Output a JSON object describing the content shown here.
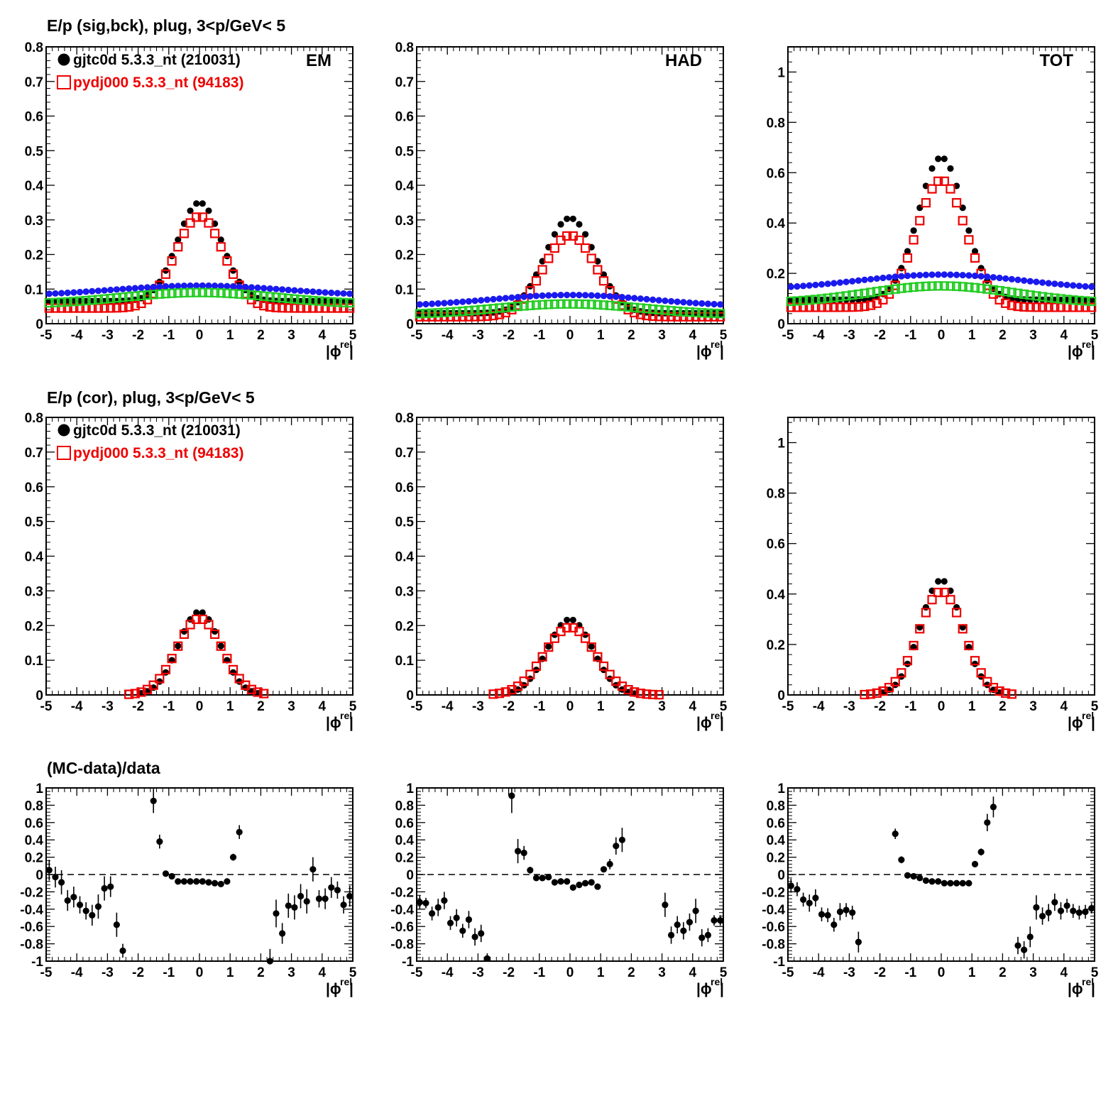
{
  "figure": {
    "row_titles": [
      "E/p (sig,bck), plug,  3<p/GeV< 5",
      "E/p (cor), plug,  3<p/GeV< 5",
      "(MC-data)/data"
    ],
    "column_labels": [
      "EM",
      "HAD",
      "TOT"
    ],
    "x_axis_label": "|ϕ",
    "x_axis_label_sup": "rel",
    "x_axis_label_end": "|",
    "legend": [
      {
        "label": "gjtc0d 5.3.3_nt (210031)",
        "color": "#000000",
        "marker": "filled-circle"
      },
      {
        "label": "pydj000 5.3.3_nt (94183)",
        "color": "#ee0000",
        "marker": "open-square"
      }
    ]
  },
  "chart_data": [
    {
      "id": "em-sig-bck",
      "type": "scatter",
      "row": 0,
      "col": 0,
      "xlim": [
        -5,
        5
      ],
      "ylim": [
        0,
        0.8
      ],
      "yticks": [
        0,
        0.1,
        0.2,
        0.3,
        0.4,
        0.5,
        0.6,
        0.7,
        0.8
      ],
      "corner_label": "EM",
      "legend": true,
      "curves": [
        {
          "kind": "peak",
          "color": "#000000",
          "marker": "circle",
          "base": 0.065,
          "amp": 0.285,
          "sigma": 0.72
        },
        {
          "kind": "peak",
          "color": "#ee0000",
          "marker": "square",
          "base": 0.045,
          "amp": 0.265,
          "sigma": 0.78
        },
        {
          "kind": "flat",
          "color": "#1a1aee",
          "marker": "circle",
          "base": 0.08,
          "amp": 0.03,
          "sigma": 2.8
        },
        {
          "kind": "flat",
          "color": "#22cc22",
          "marker": "square",
          "base": 0.055,
          "amp": 0.035,
          "sigma": 2.5
        }
      ]
    },
    {
      "id": "had-sig-bck",
      "type": "scatter",
      "row": 0,
      "col": 1,
      "xlim": [
        -5,
        5
      ],
      "ylim": [
        0,
        0.8
      ],
      "yticks": [
        0,
        0.1,
        0.2,
        0.3,
        0.4,
        0.5,
        0.6,
        0.7,
        0.8
      ],
      "corner_label": "HAD",
      "legend": false,
      "curves": [
        {
          "kind": "peak",
          "color": "#000000",
          "marker": "circle",
          "base": 0.03,
          "amp": 0.275,
          "sigma": 0.82
        },
        {
          "kind": "peak",
          "color": "#ee0000",
          "marker": "square",
          "base": 0.02,
          "amp": 0.235,
          "sigma": 0.86
        },
        {
          "kind": "flat",
          "color": "#1a1aee",
          "marker": "circle",
          "base": 0.05,
          "amp": 0.033,
          "sigma": 2.6
        },
        {
          "kind": "flat",
          "color": "#22cc22",
          "marker": "square",
          "base": 0.025,
          "amp": 0.032,
          "sigma": 2.4
        }
      ]
    },
    {
      "id": "tot-sig-bck",
      "type": "scatter",
      "row": 0,
      "col": 2,
      "xlim": [
        -5,
        5
      ],
      "ylim": [
        0,
        1.1
      ],
      "yticks": [
        0,
        0.2,
        0.4,
        0.6,
        0.8,
        1
      ],
      "corner_label": "TOT",
      "legend": false,
      "curves": [
        {
          "kind": "peak",
          "color": "#000000",
          "marker": "circle",
          "base": 0.095,
          "amp": 0.565,
          "sigma": 0.75
        },
        {
          "kind": "peak",
          "color": "#ee0000",
          "marker": "square",
          "base": 0.065,
          "amp": 0.505,
          "sigma": 0.8
        },
        {
          "kind": "flat",
          "color": "#1a1aee",
          "marker": "circle",
          "base": 0.135,
          "amp": 0.06,
          "sigma": 2.7
        },
        {
          "kind": "flat",
          "color": "#22cc22",
          "marker": "square",
          "base": 0.08,
          "amp": 0.07,
          "sigma": 2.4
        }
      ]
    },
    {
      "id": "em-cor",
      "type": "scatter",
      "row": 1,
      "col": 0,
      "xlim": [
        -5,
        5
      ],
      "ylim": [
        0,
        0.8
      ],
      "yticks": [
        0,
        0.1,
        0.2,
        0.3,
        0.4,
        0.5,
        0.6,
        0.7,
        0.8
      ],
      "corner_label": "",
      "legend": true,
      "curves": [
        {
          "kind": "peak",
          "color": "#000000",
          "marker": "circle",
          "base": 0,
          "amp": 0.24,
          "sigma": 0.68,
          "range": [
            -2.0,
            2.0
          ]
        },
        {
          "kind": "peak",
          "color": "#ee0000",
          "marker": "square",
          "base": 0,
          "amp": 0.22,
          "sigma": 0.74,
          "range": [
            -2.3,
            2.2
          ]
        }
      ]
    },
    {
      "id": "had-cor",
      "type": "scatter",
      "row": 1,
      "col": 1,
      "xlim": [
        -5,
        5
      ],
      "ylim": [
        0,
        0.8
      ],
      "yticks": [
        0,
        0.1,
        0.2,
        0.3,
        0.4,
        0.5,
        0.6,
        0.7,
        0.8
      ],
      "corner_label": "",
      "legend": false,
      "curves": [
        {
          "kind": "peak",
          "color": "#000000",
          "marker": "circle",
          "base": 0,
          "amp": 0.218,
          "sigma": 0.74,
          "range": [
            -2.0,
            2.2
          ]
        },
        {
          "kind": "peak",
          "color": "#ee0000",
          "marker": "square",
          "base": 0,
          "amp": 0.195,
          "sigma": 0.84,
          "range": [
            -2.5,
            2.9
          ]
        }
      ]
    },
    {
      "id": "tot-cor",
      "type": "scatter",
      "row": 1,
      "col": 2,
      "xlim": [
        -5,
        5
      ],
      "ylim": [
        0,
        1.1
      ],
      "yticks": [
        0,
        0.2,
        0.4,
        0.6,
        0.8,
        1
      ],
      "corner_label": "",
      "legend": false,
      "curves": [
        {
          "kind": "peak",
          "color": "#000000",
          "marker": "circle",
          "base": 0,
          "amp": 0.455,
          "sigma": 0.68,
          "range": [
            -2.0,
            2.0
          ]
        },
        {
          "kind": "peak",
          "color": "#ee0000",
          "marker": "square",
          "base": 0,
          "amp": 0.41,
          "sigma": 0.74,
          "range": [
            -2.5,
            2.3
          ]
        }
      ]
    },
    {
      "id": "em-ratio",
      "type": "scatter",
      "row": 2,
      "col": 0,
      "xlim": [
        -5,
        5
      ],
      "ylim": [
        -1,
        1
      ],
      "yticks": [
        -1,
        -0.8,
        -0.6,
        -0.4,
        -0.2,
        0,
        0.2,
        0.4,
        0.6,
        0.8,
        1
      ],
      "corner_label": "",
      "legend": false,
      "dashed_zero": true,
      "points": [
        [
          -4.9,
          0.05,
          0.12
        ],
        [
          -4.7,
          -0.03,
          0.12
        ],
        [
          -4.5,
          -0.09,
          0.14
        ],
        [
          -4.3,
          -0.3,
          0.12
        ],
        [
          -4.1,
          -0.26,
          0.12
        ],
        [
          -3.9,
          -0.35,
          0.1
        ],
        [
          -3.7,
          -0.42,
          0.1
        ],
        [
          -3.5,
          -0.47,
          0.12
        ],
        [
          -3.3,
          -0.37,
          0.14
        ],
        [
          -3.1,
          -0.16,
          0.14
        ],
        [
          -2.9,
          -0.14,
          0.12
        ],
        [
          -2.7,
          -0.58,
          0.14
        ],
        [
          -2.5,
          -0.88,
          0.08
        ],
        [
          -1.5,
          0.85,
          0.14
        ],
        [
          -1.3,
          0.38,
          0.08
        ],
        [
          -1.1,
          0.01,
          0.03
        ],
        [
          -0.9,
          -0.02,
          0.02
        ],
        [
          -0.7,
          -0.08,
          0.02
        ],
        [
          -0.5,
          -0.08,
          0.02
        ],
        [
          -0.3,
          -0.08,
          0.02
        ],
        [
          -0.1,
          -0.08,
          0.02
        ],
        [
          0.1,
          -0.08,
          0.02
        ],
        [
          0.3,
          -0.09,
          0.02
        ],
        [
          0.5,
          -0.1,
          0.02
        ],
        [
          0.7,
          -0.11,
          0.02
        ],
        [
          0.9,
          -0.08,
          0.02
        ],
        [
          1.1,
          0.2,
          0.04
        ],
        [
          1.3,
          0.49,
          0.08
        ],
        [
          2.3,
          -1.0,
          0.14
        ],
        [
          2.5,
          -0.45,
          0.16
        ],
        [
          2.7,
          -0.68,
          0.12
        ],
        [
          2.9,
          -0.36,
          0.14
        ],
        [
          3.1,
          -0.38,
          0.14
        ],
        [
          3.3,
          -0.25,
          0.14
        ],
        [
          3.5,
          -0.31,
          0.14
        ],
        [
          3.7,
          0.06,
          0.14
        ],
        [
          3.9,
          -0.28,
          0.1
        ],
        [
          4.1,
          -0.28,
          0.12
        ],
        [
          4.3,
          -0.15,
          0.12
        ],
        [
          4.5,
          -0.18,
          0.1
        ],
        [
          4.7,
          -0.35,
          0.1
        ],
        [
          4.9,
          -0.25,
          0.12
        ]
      ]
    },
    {
      "id": "had-ratio",
      "type": "scatter",
      "row": 2,
      "col": 1,
      "xlim": [
        -5,
        5
      ],
      "ylim": [
        -1,
        1
      ],
      "yticks": [
        -1,
        -0.8,
        -0.6,
        -0.4,
        -0.2,
        0,
        0.2,
        0.4,
        0.6,
        0.8,
        1
      ],
      "corner_label": "",
      "legend": false,
      "dashed_zero": true,
      "points": [
        [
          -4.9,
          -0.32,
          0.08
        ],
        [
          -4.7,
          -0.33,
          0.06
        ],
        [
          -4.5,
          -0.45,
          0.08
        ],
        [
          -4.3,
          -0.38,
          0.1
        ],
        [
          -4.1,
          -0.3,
          0.1
        ],
        [
          -3.9,
          -0.56,
          0.08
        ],
        [
          -3.7,
          -0.5,
          0.1
        ],
        [
          -3.5,
          -0.65,
          0.08
        ],
        [
          -3.3,
          -0.52,
          0.1
        ],
        [
          -3.1,
          -0.72,
          0.1
        ],
        [
          -2.9,
          -0.68,
          0.1
        ],
        [
          -2.7,
          -0.97,
          0.06
        ],
        [
          -1.9,
          0.91,
          0.2
        ],
        [
          -1.7,
          0.27,
          0.14
        ],
        [
          -1.5,
          0.25,
          0.08
        ],
        [
          -1.3,
          0.05,
          0.04
        ],
        [
          -1.1,
          -0.04,
          0.03
        ],
        [
          -0.9,
          -0.04,
          0.02
        ],
        [
          -0.7,
          -0.03,
          0.02
        ],
        [
          -0.5,
          -0.09,
          0.02
        ],
        [
          -0.3,
          -0.08,
          0.02
        ],
        [
          -0.1,
          -0.08,
          0.02
        ],
        [
          0.1,
          -0.15,
          0.02
        ],
        [
          0.3,
          -0.12,
          0.02
        ],
        [
          0.5,
          -0.1,
          0.02
        ],
        [
          0.7,
          -0.09,
          0.02
        ],
        [
          0.9,
          -0.14,
          0.02
        ],
        [
          1.1,
          0.06,
          0.03
        ],
        [
          1.3,
          0.12,
          0.06
        ],
        [
          1.5,
          0.33,
          0.1
        ],
        [
          1.7,
          0.4,
          0.14
        ],
        [
          3.1,
          -0.35,
          0.14
        ],
        [
          3.3,
          -0.7,
          0.1
        ],
        [
          3.5,
          -0.58,
          0.1
        ],
        [
          3.7,
          -0.65,
          0.1
        ],
        [
          3.9,
          -0.55,
          0.1
        ],
        [
          4.1,
          -0.42,
          0.14
        ],
        [
          4.3,
          -0.73,
          0.1
        ],
        [
          4.5,
          -0.7,
          0.08
        ],
        [
          4.7,
          -0.53,
          0.06
        ],
        [
          4.9,
          -0.53,
          0.06
        ]
      ]
    },
    {
      "id": "tot-ratio",
      "type": "scatter",
      "row": 2,
      "col": 2,
      "xlim": [
        -5,
        5
      ],
      "ylim": [
        -1,
        1
      ],
      "yticks": [
        -1,
        -0.8,
        -0.6,
        -0.4,
        -0.2,
        0,
        0.2,
        0.4,
        0.6,
        0.8,
        1
      ],
      "corner_label": "",
      "legend": false,
      "dashed_zero": true,
      "points": [
        [
          -4.9,
          -0.13,
          0.08
        ],
        [
          -4.7,
          -0.17,
          0.08
        ],
        [
          -4.5,
          -0.29,
          0.08
        ],
        [
          -4.3,
          -0.33,
          0.1
        ],
        [
          -4.1,
          -0.27,
          0.1
        ],
        [
          -3.9,
          -0.46,
          0.08
        ],
        [
          -3.7,
          -0.47,
          0.08
        ],
        [
          -3.5,
          -0.58,
          0.08
        ],
        [
          -3.3,
          -0.43,
          0.1
        ],
        [
          -3.1,
          -0.41,
          0.08
        ],
        [
          -2.9,
          -0.44,
          0.08
        ],
        [
          -2.7,
          -0.78,
          0.12
        ],
        [
          -1.5,
          0.47,
          0.06
        ],
        [
          -1.3,
          0.17,
          0.04
        ],
        [
          -1.1,
          -0.01,
          0.02
        ],
        [
          -0.9,
          -0.02,
          0.02
        ],
        [
          -0.7,
          -0.04,
          0.02
        ],
        [
          -0.5,
          -0.07,
          0.02
        ],
        [
          -0.3,
          -0.08,
          0.02
        ],
        [
          -0.1,
          -0.08,
          0.02
        ],
        [
          0.1,
          -0.1,
          0.02
        ],
        [
          0.3,
          -0.1,
          0.02
        ],
        [
          0.5,
          -0.1,
          0.02
        ],
        [
          0.7,
          -0.1,
          0.02
        ],
        [
          0.9,
          -0.1,
          0.02
        ],
        [
          1.1,
          0.12,
          0.03
        ],
        [
          1.3,
          0.26,
          0.04
        ],
        [
          1.5,
          0.6,
          0.1
        ],
        [
          1.7,
          0.78,
          0.12
        ],
        [
          2.5,
          -0.82,
          0.1
        ],
        [
          2.7,
          -0.87,
          0.1
        ],
        [
          2.9,
          -0.72,
          0.12
        ],
        [
          3.1,
          -0.38,
          0.14
        ],
        [
          3.3,
          -0.48,
          0.1
        ],
        [
          3.5,
          -0.44,
          0.1
        ],
        [
          3.7,
          -0.32,
          0.1
        ],
        [
          3.9,
          -0.42,
          0.1
        ],
        [
          4.1,
          -0.36,
          0.08
        ],
        [
          4.3,
          -0.42,
          0.08
        ],
        [
          4.5,
          -0.44,
          0.08
        ],
        [
          4.7,
          -0.43,
          0.08
        ],
        [
          4.9,
          -0.39,
          0.06
        ]
      ]
    }
  ]
}
